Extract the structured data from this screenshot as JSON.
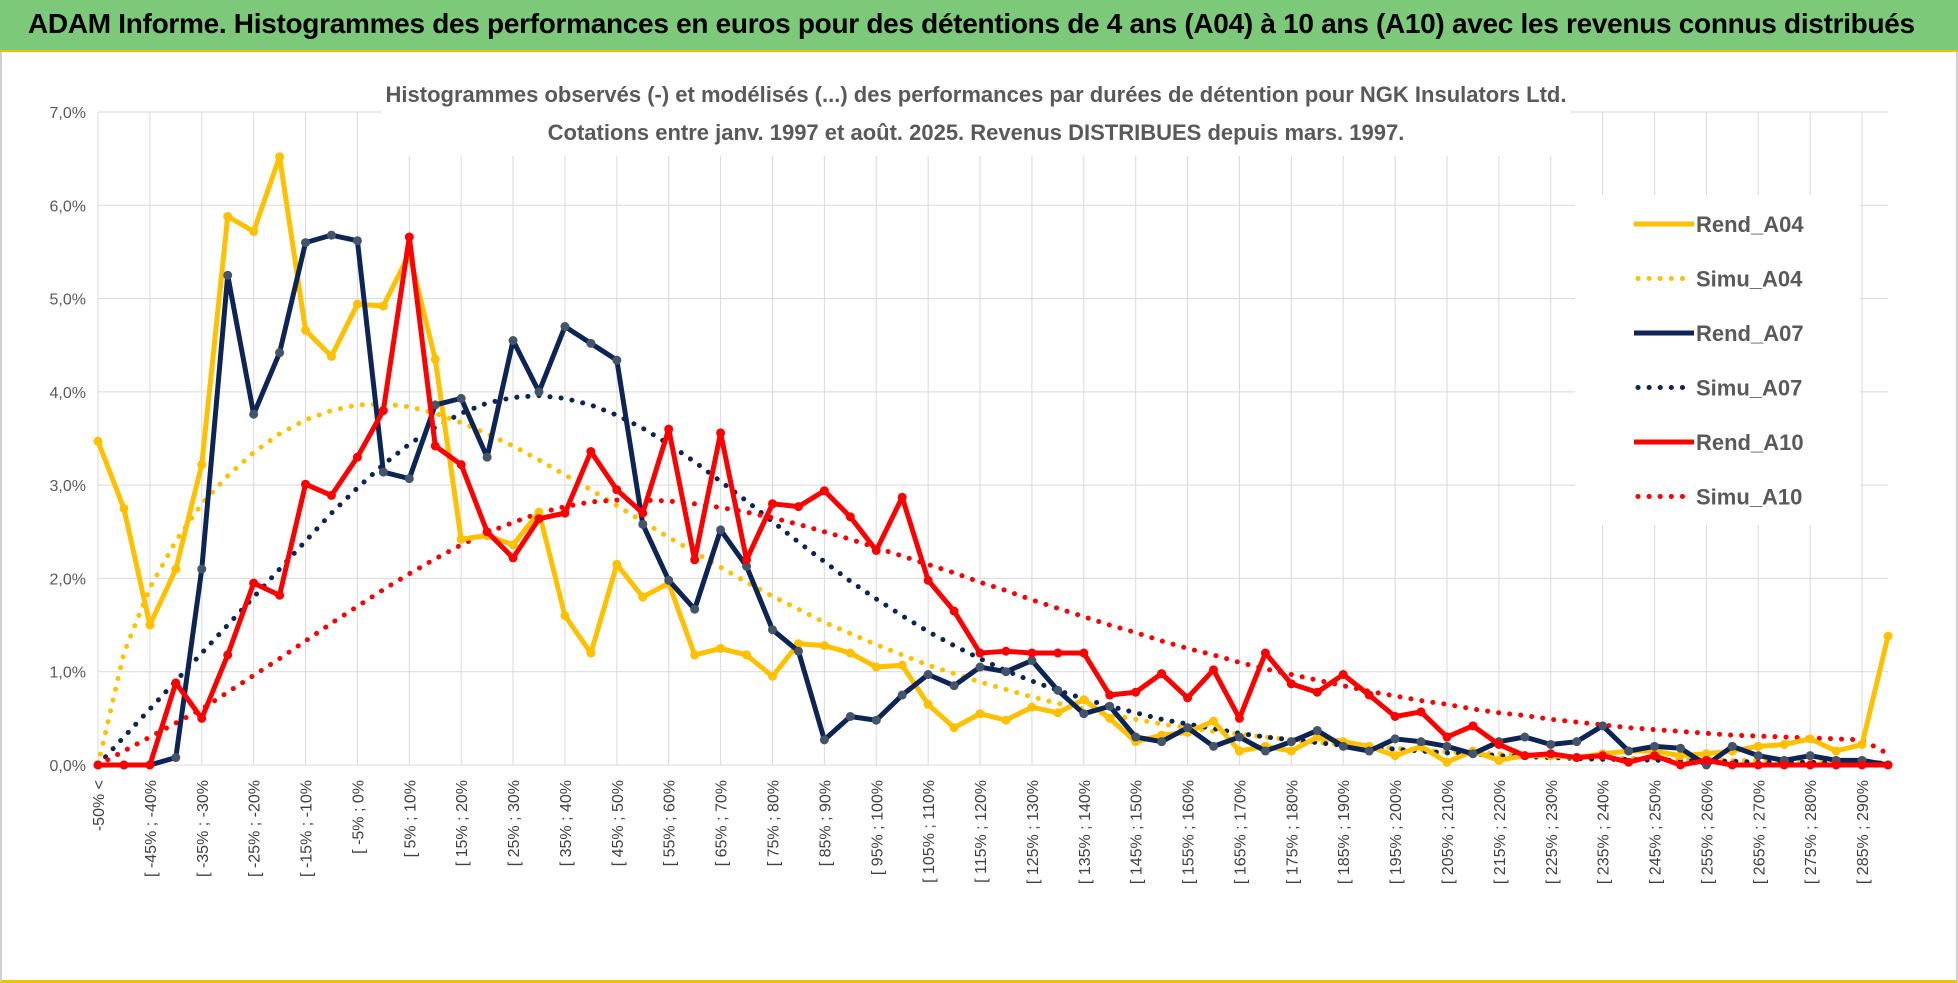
{
  "banner": {
    "title": "ADAM Informe. Histogrammes des performances en euros pour des détentions de 4 ans (A04) à 10 ans (A10) avec les revenus connus distribués"
  },
  "chart_data": {
    "type": "line",
    "title_lines": [
      "Histogrammes observés (-) et modélisés (...) des performances par durées de détention pour NGK Insulators Ltd.",
      "Cotations entre janv. 1997 et août. 2025. Revenus DISTRIBUES depuis mars. 1997."
    ],
    "ylim": [
      0,
      7
    ],
    "y_ticks": [
      "0,0%",
      "1,0%",
      "2,0%",
      "3,0%",
      "4,0%",
      "5,0%",
      "6,0%",
      "7,0%"
    ],
    "x_tick_labels": [
      "-50% <",
      "[ -45% ; -40%",
      "[ -35% ; -30%",
      "[ -25% ; -20%",
      "[ -15% ; -10%",
      "[ -5% ; 0%",
      "[ 5% ; 10%",
      "[ 15% ; 20%",
      "[ 25% ; 30%",
      "[ 35% ; 40%",
      "[ 45% ; 50%",
      "[ 55% ; 60%",
      "[ 65% ; 70%",
      "[ 75% ; 80%",
      "[ 85% ; 90%",
      "[ 95% ; 100%",
      "[ 105% ; 110%",
      "[ 115% ; 120%",
      "[ 125% ; 130%",
      "[ 135% ; 140%",
      "[ 145% ; 150%",
      "[ 155% ; 160%",
      "[ 165% ; 170%",
      "[ 175% ; 180%",
      "[ 185% ; 190%",
      "[ 195% ; 200%",
      "[ 205% ; 210%",
      "[ 215% ; 220%",
      "[ 225% ; 230%",
      "[ 235% ; 240%",
      "[ 245% ; 250%",
      "[ 255% ; 260%",
      "[ 265% ; 270%",
      "[ 275% ; 280%",
      "[ 285% ; 290%"
    ],
    "grid": true,
    "legend_position": "right",
    "series": [
      {
        "name": "Rend_A04",
        "color": "#ffc000",
        "style": "solid",
        "values": [
          3.47,
          2.75,
          1.5,
          2.1,
          3.22,
          5.88,
          5.72,
          6.52,
          4.66,
          4.38,
          4.94,
          4.92,
          5.48,
          4.35,
          2.42,
          2.46,
          2.36,
          2.71,
          1.6,
          1.2,
          2.15,
          1.8,
          1.95,
          1.18,
          1.25,
          1.18,
          0.95,
          1.3,
          1.28,
          1.2,
          1.05,
          1.07,
          0.65,
          0.4,
          0.55,
          0.48,
          0.62,
          0.56,
          0.7,
          0.5,
          0.25,
          0.32,
          0.35,
          0.47,
          0.15,
          0.2,
          0.15,
          0.3,
          0.25,
          0.2,
          0.1,
          0.2,
          0.03,
          0.15,
          0.05,
          0.1,
          0.1,
          0.08,
          0.12,
          0.15,
          0.15,
          0.1,
          0.12,
          0.15,
          0.2,
          0.22,
          0.28,
          0.15,
          0.22,
          1.38
        ]
      },
      {
        "name": "Simu_A04",
        "color": "#ffc000",
        "style": "dotted",
        "values": [
          0,
          1.2,
          1.9,
          2.4,
          2.8,
          3.1,
          3.35,
          3.55,
          3.7,
          3.8,
          3.86,
          3.87,
          3.84,
          3.77,
          3.67,
          3.55,
          3.42,
          3.27,
          3.11,
          2.95,
          2.78,
          2.61,
          2.44,
          2.28,
          2.12,
          1.96,
          1.81,
          1.67,
          1.53,
          1.41,
          1.29,
          1.18,
          1.07,
          0.98,
          0.89,
          0.81,
          0.73,
          0.66,
          0.6,
          0.54,
          0.49,
          0.44,
          0.4,
          0.36,
          0.33,
          0.3,
          0.27,
          0.24,
          0.22,
          0.2,
          0.18,
          0.16,
          0.14,
          0.13,
          0.12,
          0.11,
          0.1,
          0.09,
          0.08,
          0.07,
          0.07,
          0.06,
          0.06,
          0.05,
          0.05,
          0.04,
          0.04,
          0.04,
          0.03,
          0.03
        ]
      },
      {
        "name": "Rend_A07",
        "color": "#0d2457",
        "style": "solid",
        "values": [
          0,
          0,
          0,
          0.08,
          2.1,
          5.25,
          3.76,
          4.42,
          5.6,
          5.68,
          5.62,
          3.14,
          3.07,
          3.86,
          3.93,
          3.3,
          4.55,
          4.0,
          4.7,
          4.52,
          4.34,
          2.58,
          1.98,
          1.67,
          2.52,
          2.13,
          1.45,
          1.22,
          0.27,
          0.52,
          0.48,
          0.75,
          0.97,
          0.85,
          1.05,
          1.0,
          1.12,
          0.8,
          0.55,
          0.63,
          0.3,
          0.25,
          0.4,
          0.2,
          0.3,
          0.15,
          0.25,
          0.37,
          0.2,
          0.15,
          0.28,
          0.25,
          0.2,
          0.12,
          0.25,
          0.3,
          0.22,
          0.25,
          0.42,
          0.15,
          0.2,
          0.18,
          0.0,
          0.2,
          0.1,
          0.05,
          0.1,
          0.05,
          0.05,
          0.0
        ]
      },
      {
        "name": "Simu_A07",
        "color": "#0d2457",
        "style": "dotted",
        "values": [
          0,
          0.3,
          0.6,
          0.9,
          1.2,
          1.5,
          1.8,
          2.1,
          2.4,
          2.7,
          2.97,
          3.22,
          3.44,
          3.62,
          3.77,
          3.88,
          3.94,
          3.96,
          3.93,
          3.86,
          3.75,
          3.61,
          3.44,
          3.25,
          3.04,
          2.83,
          2.61,
          2.39,
          2.18,
          1.97,
          1.78,
          1.6,
          1.43,
          1.28,
          1.14,
          1.01,
          0.9,
          0.8,
          0.71,
          0.63,
          0.56,
          0.49,
          0.44,
          0.39,
          0.34,
          0.3,
          0.27,
          0.24,
          0.21,
          0.19,
          0.17,
          0.15,
          0.13,
          0.12,
          0.1,
          0.09,
          0.08,
          0.07,
          0.06,
          0.06,
          0.05,
          0.05,
          0.04,
          0.04,
          0.03,
          0.03,
          0.03,
          0.02,
          0.02,
          0.02
        ]
      },
      {
        "name": "Rend_A10",
        "color": "#ff0000",
        "style": "solid",
        "values": [
          0,
          0,
          0,
          0.88,
          0.5,
          1.18,
          1.95,
          1.82,
          3.01,
          2.89,
          3.3,
          3.8,
          5.66,
          3.42,
          3.22,
          2.5,
          2.22,
          2.64,
          2.7,
          3.36,
          2.95,
          2.7,
          3.6,
          2.2,
          3.56,
          2.2,
          2.8,
          2.77,
          2.94,
          2.66,
          2.3,
          2.87,
          1.98,
          1.65,
          1.2,
          1.22,
          1.2,
          1.2,
          1.2,
          0.75,
          0.78,
          0.98,
          0.72,
          1.02,
          0.5,
          1.2,
          0.87,
          0.78,
          0.97,
          0.75,
          0.52,
          0.57,
          0.3,
          0.42,
          0.22,
          0.1,
          0.12,
          0.08,
          0.1,
          0.03,
          0.1,
          0.0,
          0.05,
          0.0,
          0.0,
          0.0,
          0.0,
          0.0,
          0.0,
          0.0
        ]
      },
      {
        "name": "Simu_A10",
        "color": "#ff0000",
        "style": "dotted",
        "values": [
          0,
          0.15,
          0.3,
          0.45,
          0.6,
          0.78,
          0.96,
          1.14,
          1.33,
          1.52,
          1.7,
          1.88,
          2.05,
          2.21,
          2.36,
          2.49,
          2.6,
          2.7,
          2.77,
          2.82,
          2.84,
          2.84,
          2.83,
          2.8,
          2.76,
          2.71,
          2.65,
          2.58,
          2.5,
          2.42,
          2.33,
          2.24,
          2.15,
          2.06,
          1.96,
          1.87,
          1.77,
          1.68,
          1.59,
          1.5,
          1.42,
          1.33,
          1.25,
          1.18,
          1.1,
          1.03,
          0.97,
          0.91,
          0.85,
          0.79,
          0.74,
          0.69,
          0.65,
          0.6,
          0.56,
          0.53,
          0.49,
          0.46,
          0.43,
          0.4,
          0.38,
          0.36,
          0.34,
          0.32,
          0.31,
          0.3,
          0.29,
          0.28,
          0.27,
          0.12
        ]
      }
    ]
  }
}
